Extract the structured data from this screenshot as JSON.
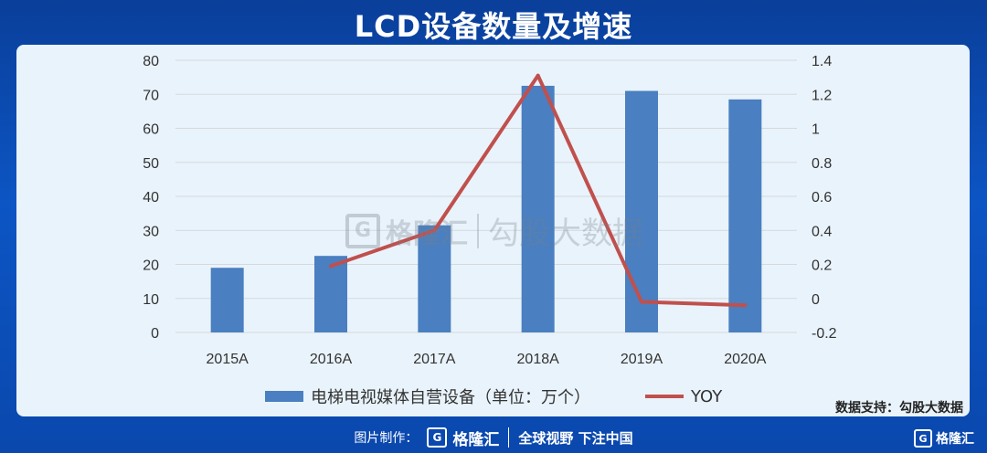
{
  "header": {
    "title": "LCD设备数量及增速"
  },
  "legend": {
    "bar_label": "电梯电视媒体自营设备（单位：万个）",
    "line_label": "YOY"
  },
  "source": "数据支持：勾股大数据",
  "watermark": {
    "logo_letter": "G",
    "brand": "格隆汇",
    "text": "勾股大数据"
  },
  "footer": {
    "made_by": "图片制作：",
    "logo_letter": "G",
    "brand": "格隆汇",
    "slogan": "全球视野 下注中国"
  },
  "corner": {
    "logo_letter": "G",
    "brand": "格隆汇"
  },
  "colors": {
    "bar": "#4a7fc1",
    "line": "#c0504d",
    "panel": "#e9f3fb",
    "gridline": "#d4d9de"
  },
  "chart_data": {
    "type": "bar",
    "categories": [
      "2015A",
      "2016A",
      "2017A",
      "2018A",
      "2019A",
      "2020A"
    ],
    "series": [
      {
        "name": "电梯电视媒体自营设备（单位：万个）",
        "type": "bar",
        "axis": "left",
        "values": [
          19,
          22.5,
          31.5,
          72.5,
          71,
          68.5
        ]
      },
      {
        "name": "YOY",
        "type": "line",
        "axis": "right",
        "values": [
          null,
          0.19,
          0.4,
          1.31,
          -0.02,
          -0.04
        ]
      }
    ],
    "ylim": [
      0,
      80
    ],
    "yticks": [
      0,
      10,
      20,
      30,
      40,
      50,
      60,
      70,
      80
    ],
    "y2lim": [
      -0.2,
      1.4
    ],
    "y2ticks": [
      "-0.2",
      "0",
      "0.2",
      "0.4",
      "0.6",
      "0.8",
      "1",
      "1.2",
      "1.4"
    ],
    "grid": true,
    "legend_position": "bottom"
  }
}
